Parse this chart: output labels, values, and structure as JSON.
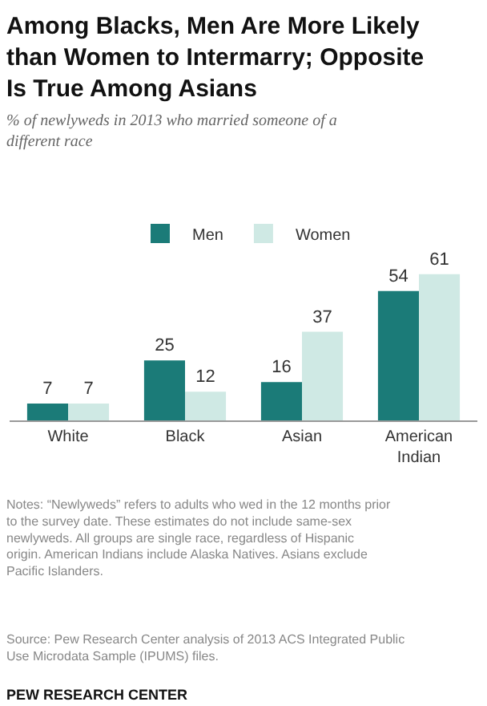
{
  "chart_data": {
    "type": "bar",
    "title": "Among Blacks, Men Are More Likely than Women to Intermarry; Opposite Is True Among Asians",
    "subtitle": "% of newlyweds in 2013 who married someone of a different race",
    "categories": [
      "White",
      "Black",
      "Asian",
      "American Indian"
    ],
    "series": [
      {
        "name": "Men",
        "color": "#1b7b78",
        "values": [
          7,
          25,
          16,
          54
        ]
      },
      {
        "name": "Women",
        "color": "#cfe9e4",
        "values": [
          7,
          12,
          37,
          61
        ]
      }
    ],
    "data_labels": true,
    "legend": "top",
    "annotations": [
      "Notes: “Newlyweds” refers to adults who wed in the 12 months prior to the survey date. These estimates do not include same-sex newlyweds. All groups are single race, regardless of Hispanic origin. American Indians include Alaska Natives. Asians exclude Pacific Islanders.",
      "Source: Pew Research Center analysis of 2013 ACS Integrated Public Use Microdata Sample (IPUMS) files.",
      "PEW RESEARCH CENTER"
    ]
  }
}
